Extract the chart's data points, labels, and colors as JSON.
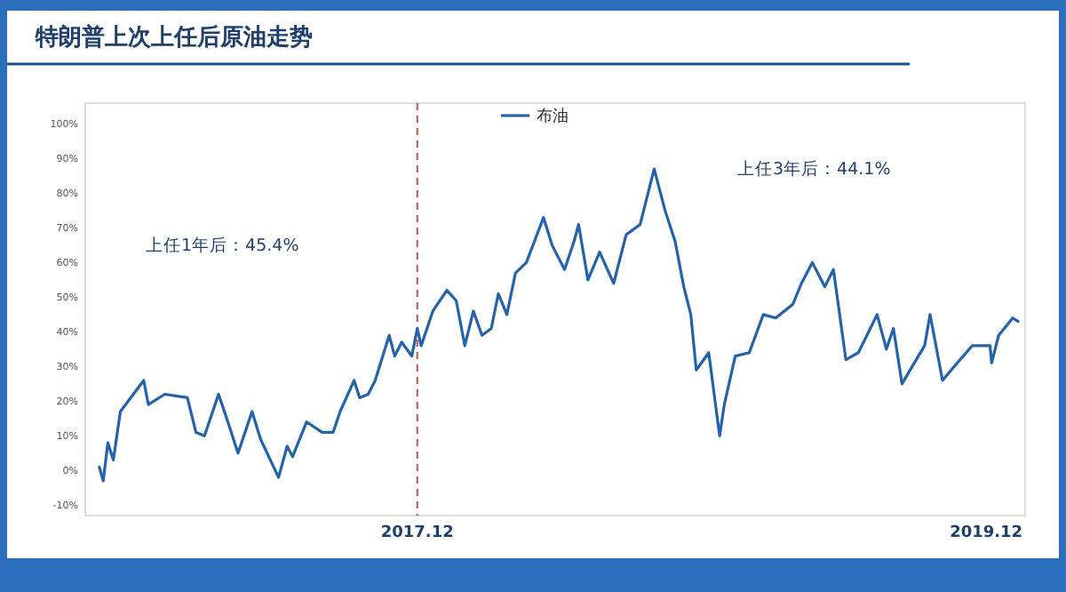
{
  "chart_data": {
    "type": "line",
    "title": "特朗普上次上任后原油走势",
    "annotations": [
      "上任1年后：45.4%",
      "上任3年后：44.1%"
    ],
    "x": [
      "2016-10-19",
      "2016-10-24",
      "2016-10-30",
      "2016-11-06",
      "2016-11-15",
      "2016-12-15",
      "2016-12-21",
      "2017-01-11",
      "2017-02-09",
      "2017-02-20",
      "2017-03-03",
      "2017-03-21",
      "2017-04-02",
      "2017-04-15",
      "2017-05-03",
      "2017-05-14",
      "2017-06-06",
      "2017-06-17",
      "2017-06-24",
      "2017-07-12",
      "2017-08-01",
      "2017-08-15",
      "2017-08-24",
      "2017-09-11",
      "2017-09-18",
      "2017-09-29",
      "2017-10-08",
      "2017-10-26",
      "2017-11-02",
      "2017-11-11",
      "2017-11-24",
      "2017-12-01",
      "2017-12-06",
      "2017-12-21",
      "2018-01-08",
      "2018-01-20",
      "2018-01-31",
      "2018-02-11",
      "2018-02-22",
      "2018-03-06",
      "2018-03-15",
      "2018-03-26",
      "2018-04-06",
      "2018-04-20",
      "2018-05-12",
      "2018-05-23",
      "2018-06-08",
      "2018-06-20",
      "2018-06-26",
      "2018-07-08",
      "2018-07-23",
      "2018-08-10",
      "2018-08-26",
      "2018-09-13",
      "2018-10-01",
      "2018-10-15",
      "2018-10-28",
      "2018-11-08",
      "2018-11-17",
      "2018-11-24",
      "2018-12-10",
      "2018-12-24",
      "2018-12-30",
      "2019-01-13",
      "2019-01-31",
      "2019-02-18",
      "2019-03-06",
      "2019-03-28",
      "2019-04-08",
      "2019-04-22",
      "2019-05-08",
      "2019-05-19",
      "2019-06-04",
      "2019-06-20",
      "2019-07-01",
      "2019-07-14",
      "2019-07-26",
      "2019-08-04",
      "2019-08-15",
      "2019-08-28",
      "2019-09-13",
      "2019-09-20",
      "2019-10-06",
      "2019-10-21",
      "2019-11-13",
      "2019-12-06",
      "2019-12-08",
      "2019-12-17",
      "2019-12-28",
      "2020-01-04",
      "2020-01-11"
    ],
    "series": [
      {
        "name": "布油",
        "color": "#2463ac",
        "values": [
          1,
          -3,
          8,
          3,
          17,
          26,
          19,
          22,
          21,
          11,
          10,
          22,
          14,
          5,
          17,
          9,
          -2,
          7,
          4,
          14,
          11,
          11,
          17,
          26,
          21,
          22,
          26,
          39,
          33,
          37,
          33,
          41,
          36,
          46,
          52,
          49,
          36,
          46,
          39,
          41,
          51,
          45,
          57,
          60,
          73,
          65,
          58,
          66,
          71,
          55,
          63,
          54,
          68,
          71,
          87,
          75,
          66,
          53,
          45,
          29,
          34,
          10,
          19,
          33,
          34,
          45,
          44,
          48,
          54,
          60,
          53,
          58,
          32,
          34,
          39,
          45,
          35,
          41,
          25,
          30,
          36,
          45,
          26,
          30,
          36,
          36,
          31,
          39,
          42,
          44,
          43
        ]
      }
    ],
    "xlim": [
      "2016-10-01",
      "2020-01-20"
    ],
    "xticks": [
      {
        "value": "2017-12-01",
        "label": "2017.12"
      },
      {
        "value": "2019-12-01",
        "label": "2019.12"
      }
    ],
    "ylim": [
      -13,
      106
    ],
    "yticks": [
      {
        "value": -10,
        "label": "-10%"
      },
      {
        "value": 0,
        "label": "0%"
      },
      {
        "value": 10,
        "label": "10%"
      },
      {
        "value": 20,
        "label": "20%"
      },
      {
        "value": 30,
        "label": "30%"
      },
      {
        "value": 40,
        "label": "40%"
      },
      {
        "value": 50,
        "label": "50%"
      },
      {
        "value": 60,
        "label": "60%"
      },
      {
        "value": 70,
        "label": "70%"
      },
      {
        "value": 80,
        "label": "80%"
      },
      {
        "value": 90,
        "label": "90%"
      },
      {
        "value": 100,
        "label": "100%"
      }
    ],
    "ref_lines": [
      {
        "axis": "x",
        "value": "2017-12-01",
        "color": "#c0504d",
        "line_style": "dashed"
      }
    ],
    "legend": "top",
    "grid": false,
    "line_style": "solid",
    "marker": "none"
  }
}
